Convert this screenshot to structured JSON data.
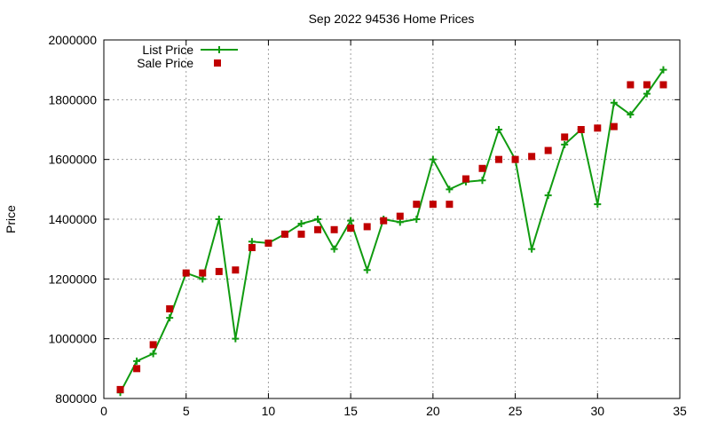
{
  "chart_data": {
    "type": "scatter",
    "title": "Sep 2022 94536 Home Prices",
    "xlabel": "",
    "ylabel": "Price",
    "xlim": [
      0,
      35
    ],
    "ylim": [
      800000,
      2000000
    ],
    "xticks": [
      0,
      5,
      10,
      15,
      20,
      25,
      30,
      35
    ],
    "yticks": [
      800000,
      1000000,
      1200000,
      1400000,
      1600000,
      1800000,
      2000000
    ],
    "xtick_labels": [
      "0",
      "5",
      "10",
      "15",
      "20",
      "25",
      "30",
      "35"
    ],
    "ytick_labels": [
      "800000",
      "1000000",
      "1200000",
      "1400000",
      "1600000",
      "1800000",
      "2000000"
    ],
    "grid": true,
    "legend_position": "top-left",
    "series": [
      {
        "name": "List Price",
        "style": "line-with-plus-markers",
        "color": "#109b10",
        "x": [
          1,
          2,
          3,
          4,
          5,
          6,
          7,
          8,
          9,
          10,
          11,
          12,
          13,
          14,
          15,
          16,
          17,
          18,
          19,
          20,
          21,
          22,
          23,
          24,
          25,
          26,
          27,
          28,
          29,
          30,
          31,
          32,
          33,
          34
        ],
        "y": [
          820000,
          925000,
          950000,
          1070000,
          1220000,
          1200000,
          1400000,
          1000000,
          1325000,
          1320000,
          1350000,
          1385000,
          1400000,
          1300000,
          1395000,
          1230000,
          1400000,
          1390000,
          1400000,
          1600000,
          1500000,
          1525000,
          1530000,
          1700000,
          1600000,
          1300000,
          1480000,
          1650000,
          1700000,
          1450000,
          1790000,
          1750000,
          1820000,
          1900000
        ]
      },
      {
        "name": "Sale Price",
        "style": "square-markers",
        "color": "#c00000",
        "x": [
          1,
          2,
          3,
          4,
          5,
          6,
          7,
          8,
          9,
          10,
          11,
          12,
          13,
          14,
          15,
          16,
          17,
          18,
          19,
          20,
          21,
          22,
          23,
          24,
          25,
          26,
          27,
          28,
          29,
          30,
          31,
          32,
          33,
          34
        ],
        "y": [
          830000,
          900000,
          980000,
          1100000,
          1220000,
          1220000,
          1225000,
          1230000,
          1305000,
          1320000,
          1350000,
          1350000,
          1365000,
          1365000,
          1370000,
          1375000,
          1395000,
          1410000,
          1450000,
          1450000,
          1450000,
          1535000,
          1570000,
          1600000,
          1600000,
          1610000,
          1630000,
          1675000,
          1700000,
          1705000,
          1710000,
          1850000,
          1850000,
          1850000
        ]
      }
    ]
  }
}
